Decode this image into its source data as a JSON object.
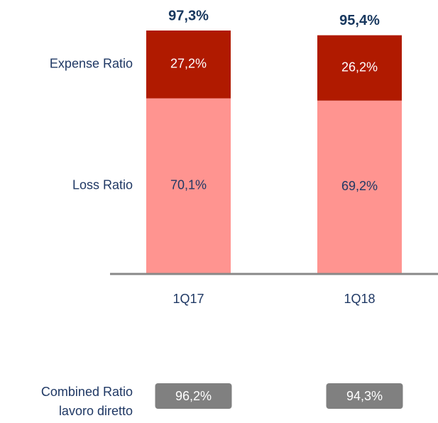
{
  "chart_data": {
    "type": "stacked_bar",
    "categories": [
      "1Q17",
      "1Q18"
    ],
    "series": [
      {
        "name": "Loss Ratio",
        "color": "#ff9490",
        "label_color": "#1f3864",
        "values": [
          70.1,
          69.2
        ],
        "value_labels": [
          "70,1%",
          "69,2%"
        ]
      },
      {
        "name": "Expense Ratio",
        "color": "#b01a00",
        "label_color": "#ffffff",
        "values": [
          27.2,
          26.2
        ],
        "value_labels": [
          "27,2%",
          "26,2%"
        ]
      }
    ],
    "totals": [
      97.3,
      95.4
    ],
    "total_labels": [
      "97,3%",
      "95,4%"
    ],
    "combined_ratio": {
      "label_lines": [
        "Combined Ratio",
        "lavoro diretto"
      ],
      "values": [
        96.2,
        94.3
      ],
      "value_labels": [
        "96,2%",
        "94,3%"
      ],
      "color": "#808080"
    }
  }
}
